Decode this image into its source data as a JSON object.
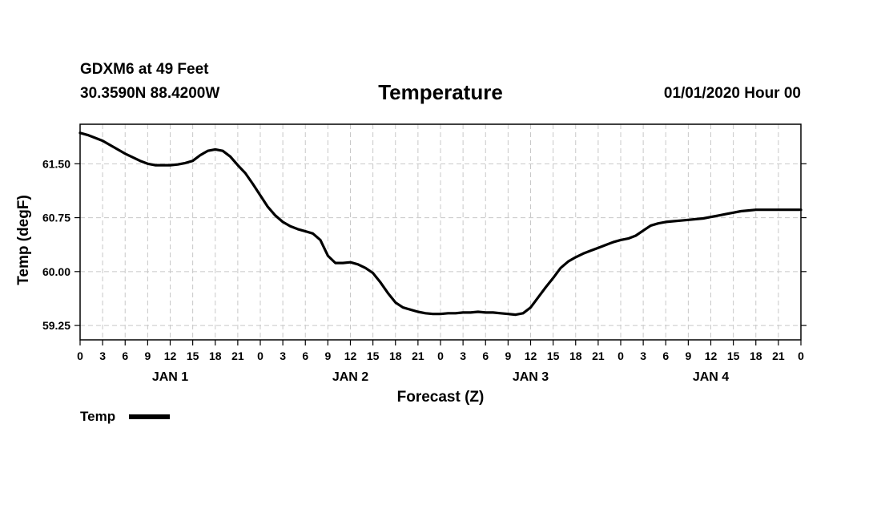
{
  "header": {
    "station": "GDXM6 at 49 Feet",
    "coords": "30.3590N 88.4200W",
    "title": "Temperature",
    "datetime": "01/01/2020 Hour 00"
  },
  "chart_data": {
    "type": "line",
    "title": "Temperature",
    "xlabel": "Forecast (Z)",
    "ylabel": "Temp (degF)",
    "ylim": [
      59.05,
      62.05
    ],
    "xlim": [
      0,
      96
    ],
    "yticks": [
      59.25,
      60.0,
      60.75,
      61.5
    ],
    "ytick_labels": [
      "59.25",
      "60.00",
      "60.75",
      "61.50"
    ],
    "xtick_labels": [
      "0",
      "3",
      "6",
      "9",
      "12",
      "15",
      "18",
      "21",
      "0",
      "3",
      "6",
      "9",
      "12",
      "15",
      "18",
      "21",
      "0",
      "3",
      "6",
      "9",
      "12",
      "15",
      "18",
      "21",
      "0",
      "3",
      "6",
      "9",
      "12",
      "15",
      "18",
      "21",
      "0"
    ],
    "day_labels": [
      {
        "label": "JAN 1",
        "x": 12
      },
      {
        "label": "JAN 2",
        "x": 36
      },
      {
        "label": "JAN 3",
        "x": 60
      },
      {
        "label": "JAN 4",
        "x": 84
      }
    ],
    "grid": true,
    "legend": {
      "position": "bottom-left",
      "entries": [
        "Temp"
      ]
    },
    "series": [
      {
        "name": "Temp",
        "x": [
          0,
          1,
          2,
          3,
          4,
          5,
          6,
          7,
          8,
          9,
          10,
          11,
          12,
          13,
          14,
          15,
          16,
          17,
          18,
          19,
          20,
          21,
          22,
          23,
          24,
          25,
          26,
          27,
          28,
          29,
          30,
          31,
          32,
          33,
          34,
          35,
          36,
          37,
          38,
          39,
          40,
          41,
          42,
          43,
          44,
          45,
          46,
          47,
          48,
          49,
          50,
          51,
          52,
          53,
          54,
          55,
          56,
          57,
          58,
          59,
          60,
          61,
          62,
          63,
          64,
          65,
          66,
          67,
          68,
          69,
          70,
          71,
          72,
          73,
          74,
          75,
          76,
          77,
          78,
          79,
          80,
          81,
          82,
          83,
          84,
          85,
          86,
          87,
          88,
          89,
          90,
          91,
          92,
          93,
          94,
          95,
          96
        ],
        "values": [
          61.93,
          61.9,
          61.86,
          61.82,
          61.76,
          61.7,
          61.64,
          61.59,
          61.54,
          61.5,
          61.48,
          61.48,
          61.48,
          61.49,
          61.51,
          61.54,
          61.62,
          61.68,
          61.7,
          61.68,
          61.6,
          61.48,
          61.37,
          61.22,
          61.06,
          60.9,
          60.78,
          60.69,
          60.63,
          60.59,
          60.56,
          60.53,
          60.44,
          60.22,
          60.12,
          60.12,
          60.13,
          60.1,
          60.05,
          59.98,
          59.85,
          59.7,
          59.57,
          59.5,
          59.47,
          59.44,
          59.42,
          59.41,
          59.41,
          59.42,
          59.42,
          59.43,
          59.43,
          59.44,
          59.43,
          59.43,
          59.42,
          59.41,
          59.4,
          59.42,
          59.5,
          59.64,
          59.78,
          59.91,
          60.05,
          60.14,
          60.2,
          60.25,
          60.29,
          60.33,
          60.37,
          60.41,
          60.44,
          60.46,
          60.5,
          60.57,
          60.64,
          60.67,
          60.69,
          60.7,
          60.71,
          60.72,
          60.73,
          60.74,
          60.76,
          60.78,
          60.8,
          60.82,
          60.84,
          60.85,
          60.86,
          60.86,
          60.86,
          60.86,
          60.86,
          60.86,
          60.86
        ]
      }
    ]
  }
}
